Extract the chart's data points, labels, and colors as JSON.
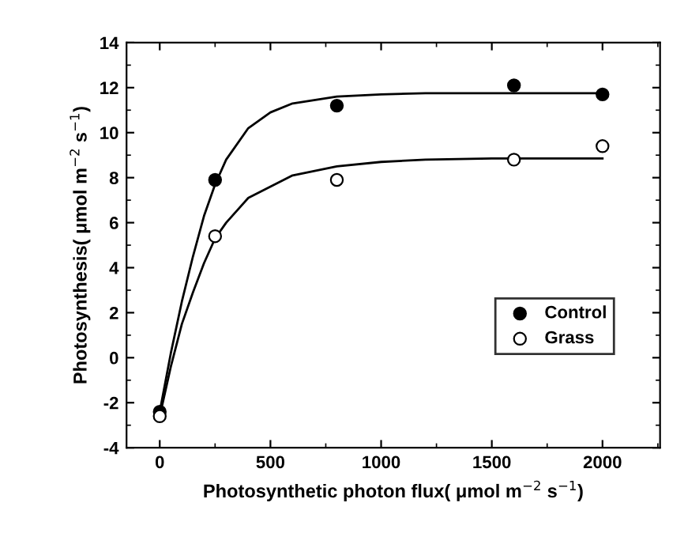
{
  "chart_data": {
    "type": "scatter",
    "xlabel": "Photosynthetic photon flux( μmol m$^{−2}$ s$^{−1}$)",
    "ylabel": "Photosynthesis( μmol m$^{−2}$ s$^{−1}$)",
    "xlim": [
      -150,
      2260
    ],
    "xticks": [
      0,
      500,
      1000,
      1500,
      2000
    ],
    "ylim": [
      -4,
      14
    ],
    "yticks": [
      -4,
      -2,
      0,
      2,
      4,
      6,
      8,
      10,
      12,
      14
    ],
    "grid": false,
    "legend": "right",
    "series": [
      {
        "name": "Control",
        "marker": "circle",
        "color": "#000000",
        "x": [
          0,
          250,
          800,
          1600,
          2000
        ],
        "values": [
          -2.4,
          7.9,
          11.2,
          12.1,
          11.7
        ]
      },
      {
        "name": "Grass",
        "marker": "circle",
        "color": "#ffffff",
        "x": [
          0,
          250,
          800,
          1600,
          2000
        ],
        "values": [
          -2.6,
          5.4,
          7.9,
          8.8,
          9.4
        ]
      },
      {
        "type": "line",
        "marker": "none",
        "color": "#000000",
        "x": [
          0,
          50,
          100,
          150,
          200,
          250,
          300,
          400,
          500,
          600,
          800,
          1000,
          1200,
          1500,
          2000
        ],
        "values": [
          -2.4,
          0.2,
          2.5,
          4.5,
          6.3,
          7.7,
          8.8,
          10.2,
          10.9,
          11.3,
          11.6,
          11.7,
          11.75,
          11.75,
          11.75
        ]
      },
      {
        "type": "line",
        "marker": "none",
        "color": "#000000",
        "x": [
          0,
          50,
          100,
          150,
          200,
          250,
          300,
          400,
          500,
          600,
          800,
          1000,
          1200,
          1500,
          2000
        ],
        "values": [
          -2.6,
          -0.4,
          1.5,
          2.9,
          4.2,
          5.3,
          6.0,
          7.1,
          7.6,
          8.1,
          8.5,
          8.7,
          8.8,
          8.85,
          8.85
        ]
      }
    ]
  }
}
